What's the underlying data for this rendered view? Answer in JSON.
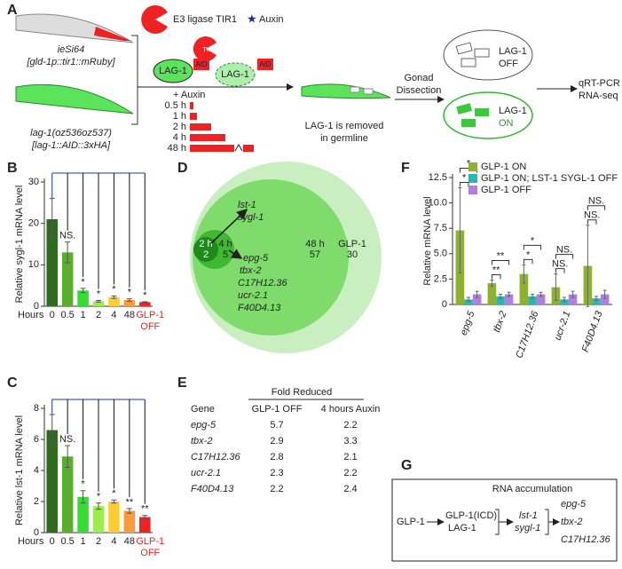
{
  "panels": [
    "A",
    "B",
    "C",
    "D",
    "E",
    "F",
    "G"
  ],
  "scheme": {
    "tir1_label": "E3 ligase TIR1",
    "auxin_label": "Auxin",
    "strain1": [
      "ieSi64",
      "[gld-1p::tir1::mRuby]"
    ],
    "strain2": [
      "lag-1(oz536oz537)",
      "[lag-1::AID::3xHA]"
    ],
    "tir1": "TIR1",
    "lag1": "LAG-1",
    "aid": "AID",
    "plus_auxin": "+ Auxin",
    "times": [
      "0.5 h",
      "1 h",
      "2 h",
      "4 h",
      "48 h"
    ],
    "removed": [
      "LAG-1 is removed",
      "in germline"
    ],
    "dissection": [
      "Gonad",
      "Dissection"
    ],
    "off_state": [
      "LAG-1",
      "OFF"
    ],
    "on_state": [
      "LAG-1",
      "ON"
    ],
    "readout": [
      "qRT-PCR or",
      "RNA-seq"
    ]
  },
  "chart_data": [
    {
      "type": "bar",
      "ylabel": "Relative sygl-1 mRNA level",
      "xlabel": "Hours",
      "categories": [
        "0",
        "0.5",
        "1",
        "2",
        "4",
        "48",
        "GLP-1 OFF"
      ],
      "values": [
        21,
        13,
        3.8,
        1.2,
        2.2,
        1.5,
        1.0
      ],
      "errors": [
        5,
        2.5,
        0.5,
        0.2,
        0.3,
        0.3,
        0.1
      ],
      "colors": [
        "#2e6b1f",
        "#5aae2e",
        "#33dd33",
        "#9ced4a",
        "#ffcc33",
        "#ff9a3a",
        "#ee2222"
      ],
      "annotations": [
        null,
        "NS.",
        "*",
        "*",
        "*",
        "*",
        "*"
      ],
      "ylim": [
        0,
        30
      ],
      "yticks": [
        0,
        10,
        20,
        30
      ]
    },
    {
      "type": "bar",
      "ylabel": "Relative lst-1 mRNA level",
      "xlabel": "Hours",
      "categories": [
        "0",
        "0.5",
        "1",
        "2",
        "4",
        "48",
        "GLP-1 OFF"
      ],
      "values": [
        6.6,
        4.9,
        2.3,
        1.7,
        2.0,
        1.4,
        1.0
      ],
      "errors": [
        1.0,
        0.7,
        0.4,
        0.2,
        0.1,
        0.15,
        0.1
      ],
      "colors": [
        "#2e6b1f",
        "#5aae2e",
        "#33dd33",
        "#9ced4a",
        "#ffcc33",
        "#ff9a3a",
        "#ee2222"
      ],
      "annotations": [
        null,
        "NS.",
        "*",
        "*",
        "*",
        "**",
        "**"
      ],
      "ylim": [
        0,
        8
      ],
      "yticks": [
        0,
        2,
        4,
        6,
        8
      ]
    },
    {
      "type": "grouped_bar",
      "ylabel": "Relative mRNA level",
      "categories": [
        "epg-5",
        "tbx-2",
        "C17H12.36",
        "ucr-2.1",
        "F40D4.13"
      ],
      "series": [
        {
          "name": "GLP-1 ON",
          "color": "#8db22e",
          "values": [
            7.3,
            2.1,
            3.0,
            1.7,
            3.8
          ],
          "errors": [
            4.2,
            0.3,
            0.9,
            1.3,
            4.0
          ]
        },
        {
          "name": "GLP-1 ON; LST-1 SYGL-1 OFF",
          "color": "#2bb5b5",
          "values": [
            0.5,
            0.8,
            0.8,
            0.5,
            0.6
          ],
          "errors": [
            0.2,
            0.2,
            0.2,
            0.2,
            0.2
          ]
        },
        {
          "name": "GLP-1 OFF",
          "color": "#b07fe0",
          "values": [
            1,
            1,
            1,
            1,
            1
          ],
          "errors": [
            0.3,
            0.2,
            0.2,
            0.3,
            0.4
          ]
        }
      ],
      "significance": [
        [
          "*",
          "*"
        ],
        [
          "**",
          "**"
        ],
        [
          "*",
          "*"
        ],
        [
          "NS.",
          "NS."
        ],
        [
          "NS.",
          "NS."
        ]
      ],
      "ylim": [
        0,
        12.5
      ],
      "yticks": [
        0,
        2.5,
        {
          "value": 5,
          "label": "5.0"
        },
        7.5,
        {
          "value": 10,
          "label": "10.0"
        },
        12.5
      ],
      "legend": "top-right"
    }
  ],
  "venn": {
    "sets": [
      {
        "label": "2 h",
        "count": 2
      },
      {
        "label": "4 h",
        "count": 5
      },
      {
        "label": "48 h",
        "count": 57
      },
      {
        "label": "GLP-1",
        "count": 30
      }
    ],
    "genes_2h": [
      "lst-1",
      "sygl-1"
    ],
    "genes_4h": [
      "epg-5",
      "tbx-2",
      "C17H12.36",
      "ucr-2.1",
      "F40D4.13"
    ]
  },
  "table": {
    "group_header": "Fold Reduced",
    "header": [
      "Gene",
      "GLP-1 OFF",
      "4 hours Auxin"
    ],
    "rows": [
      [
        "epg-5",
        5.7,
        2.2
      ],
      [
        "tbx-2",
        2.9,
        3.3
      ],
      [
        "C17H12.36",
        2.8,
        2.1
      ],
      [
        "ucr-2.1",
        2.3,
        2.2
      ],
      [
        "F40D4.13",
        2.2,
        2.4
      ]
    ]
  },
  "pathway": {
    "title": "RNA accumulation",
    "start": "GLP-1",
    "complex": [
      "GLP-1(ICD)",
      "LAG-1"
    ],
    "targets": [
      "lst-1",
      "sygl-1"
    ],
    "outputs": [
      "epg-5",
      "tbx-2",
      "C17H12.36"
    ]
  }
}
